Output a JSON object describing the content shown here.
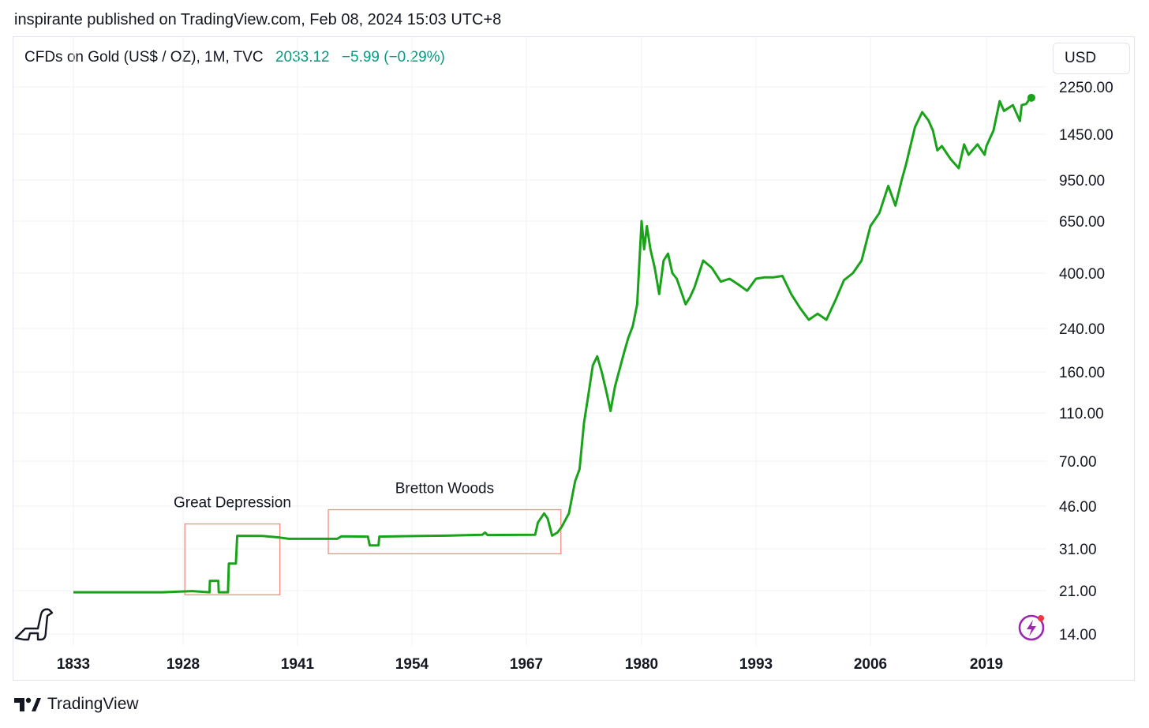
{
  "header": {
    "published": "inspirante published on TradingView.com, Feb 08, 2024 15:03 UTC+8"
  },
  "legend": {
    "symbol": "CFDs on Gold (US$ / OZ), 1M, TVC",
    "last": "2033.12",
    "change": "−5.99 (−0.29%)"
  },
  "currency": "USD",
  "footer": {
    "brand": "TradingView"
  },
  "colors": {
    "line": "#1aa31a",
    "box": "#f28b82",
    "grid": "#eef0f3",
    "text": "#131722"
  },
  "icons": {
    "logo": "dinosaur-logo-icon",
    "alert": "lightning-icon",
    "brand": "tradingview-logo-icon"
  },
  "chart_data": {
    "type": "line",
    "scale": "log",
    "y_ticks": [
      2250,
      1450,
      950,
      650,
      400,
      240,
      160,
      110,
      70,
      46,
      31,
      21,
      14
    ],
    "y_tick_labels": [
      "2250.00",
      "1450.00",
      "950.00",
      "650.00",
      "400.00",
      "240.00",
      "160.00",
      "110.00",
      "70.00",
      "46.00",
      "31.00",
      "21.00",
      "14.00"
    ],
    "x_tick_labels": [
      "1833",
      "1928",
      "1941",
      "1954",
      "1967",
      "1980",
      "1993",
      "2006",
      "2019"
    ],
    "grid": true,
    "annotations": [
      {
        "label": "Great Depression",
        "from": 1928.2,
        "to": 1939.0,
        "low": 20.2,
        "high": 39.0
      },
      {
        "label": "Bretton Woods",
        "from": 1944.5,
        "to": 1970.9,
        "low": 29.6,
        "high": 44.5
      }
    ],
    "series": [
      {
        "points": [
          [
            1912,
            20.67
          ],
          [
            1925,
            20.67
          ],
          [
            1929,
            20.9
          ],
          [
            1931,
            20.67
          ],
          [
            1931.05,
            23.0
          ],
          [
            1932.0,
            23.0
          ],
          [
            1932.05,
            20.67
          ],
          [
            1933.1,
            20.67
          ],
          [
            1933.2,
            27.0
          ],
          [
            1934.0,
            27.0
          ],
          [
            1934.15,
            34.95
          ],
          [
            1937,
            34.9
          ],
          [
            1939,
            34.4
          ],
          [
            1940,
            34.0
          ],
          [
            1945.5,
            34.0
          ],
          [
            1946,
            34.8
          ],
          [
            1949,
            34.7
          ],
          [
            1949.2,
            32.0
          ],
          [
            1950.2,
            32.0
          ],
          [
            1950.3,
            34.7
          ],
          [
            1955,
            34.9
          ],
          [
            1958,
            35.0
          ],
          [
            1962,
            35.3
          ],
          [
            1962.3,
            36.0
          ],
          [
            1962.6,
            35.2
          ],
          [
            1968.0,
            35.3
          ],
          [
            1968.3,
            39.5
          ],
          [
            1969.0,
            43.0
          ],
          [
            1969.4,
            41.0
          ],
          [
            1969.9,
            35.0
          ],
          [
            1970.5,
            36.0
          ],
          [
            1971,
            38.0
          ],
          [
            1971.8,
            43.0
          ],
          [
            1972.5,
            58.0
          ],
          [
            1973,
            65.0
          ],
          [
            1973.5,
            100.0
          ],
          [
            1974,
            130.0
          ],
          [
            1974.5,
            170.0
          ],
          [
            1975.0,
            185.0
          ],
          [
            1975.5,
            160.0
          ],
          [
            1976.0,
            135.0
          ],
          [
            1976.5,
            112.0
          ],
          [
            1977,
            140.0
          ],
          [
            1978,
            190.0
          ],
          [
            1978.5,
            220.0
          ],
          [
            1979.0,
            245.0
          ],
          [
            1979.5,
            300.0
          ],
          [
            1980.0,
            650.0
          ],
          [
            1980.3,
            500.0
          ],
          [
            1980.6,
            620.0
          ],
          [
            1981,
            500.0
          ],
          [
            1981.5,
            420.0
          ],
          [
            1982.0,
            330.0
          ],
          [
            1982.5,
            450.0
          ],
          [
            1983.0,
            480.0
          ],
          [
            1983.5,
            400.0
          ],
          [
            1984,
            380.0
          ],
          [
            1985,
            300.0
          ],
          [
            1985.5,
            320.0
          ],
          [
            1986,
            350.0
          ],
          [
            1987,
            450.0
          ],
          [
            1988,
            420.0
          ],
          [
            1989,
            370.0
          ],
          [
            1990,
            380.0
          ],
          [
            1991,
            360.0
          ],
          [
            1992,
            340.0
          ],
          [
            1993,
            380.0
          ],
          [
            1994,
            385.0
          ],
          [
            1995,
            385.0
          ],
          [
            1996,
            390.0
          ],
          [
            1997,
            330.0
          ],
          [
            1998,
            290.0
          ],
          [
            1999,
            260.0
          ],
          [
            2000,
            275.0
          ],
          [
            2001,
            260.0
          ],
          [
            2002,
            310.0
          ],
          [
            2003,
            375.0
          ],
          [
            2004,
            400.0
          ],
          [
            2005,
            450.0
          ],
          [
            2006,
            620.0
          ],
          [
            2007,
            700.0
          ],
          [
            2008,
            900.0
          ],
          [
            2008.8,
            750.0
          ],
          [
            2009.5,
            950.0
          ],
          [
            2010,
            1100.0
          ],
          [
            2011,
            1550.0
          ],
          [
            2011.8,
            1780.0
          ],
          [
            2012.5,
            1650.0
          ],
          [
            2013,
            1500.0
          ],
          [
            2013.5,
            1250.0
          ],
          [
            2014,
            1300.0
          ],
          [
            2015,
            1150.0
          ],
          [
            2015.9,
            1060.0
          ],
          [
            2016.5,
            1320.0
          ],
          [
            2017,
            1200.0
          ],
          [
            2018,
            1320.0
          ],
          [
            2018.8,
            1200.0
          ],
          [
            2019,
            1300.0
          ],
          [
            2019.8,
            1500.0
          ],
          [
            2020.5,
            1970.0
          ],
          [
            2021,
            1800.0
          ],
          [
            2022,
            1900.0
          ],
          [
            2022.8,
            1640.0
          ],
          [
            2023,
            1900.0
          ],
          [
            2023.5,
            1920.0
          ],
          [
            2024,
            2040.0
          ],
          [
            2024.1,
            2033.12
          ]
        ]
      }
    ]
  }
}
